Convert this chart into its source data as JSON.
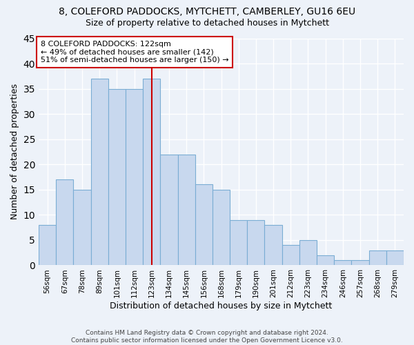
{
  "title": "8, COLEFORD PADDOCKS, MYTCHETT, CAMBERLEY, GU16 6EU",
  "subtitle": "Size of property relative to detached houses in Mytchett",
  "xlabel": "Distribution of detached houses by size in Mytchett",
  "ylabel": "Number of detached properties",
  "categories": [
    "56sqm",
    "67sqm",
    "78sqm",
    "89sqm",
    "101sqm",
    "112sqm",
    "123sqm",
    "134sqm",
    "145sqm",
    "156sqm",
    "168sqm",
    "179sqm",
    "190sqm",
    "201sqm",
    "212sqm",
    "223sqm",
    "234sqm",
    "246sqm",
    "257sqm",
    "268sqm",
    "279sqm"
  ],
  "values": [
    8,
    17,
    15,
    37,
    35,
    35,
    37,
    22,
    22,
    16,
    15,
    9,
    9,
    8,
    4,
    5,
    2,
    1,
    1,
    3,
    3
  ],
  "bar_color": "#c8d8ee",
  "bar_edge_color": "#7aadd4",
  "ylim": [
    0,
    45
  ],
  "yticks": [
    0,
    5,
    10,
    15,
    20,
    25,
    30,
    35,
    40,
    45
  ],
  "annotation_text": "8 COLEFORD PADDOCKS: 122sqm\n← 49% of detached houses are smaller (142)\n51% of semi-detached houses are larger (150) →",
  "annotation_box_color": "#ffffff",
  "annotation_box_edgecolor": "#cc0000",
  "footer_text": "Contains HM Land Registry data © Crown copyright and database right 2024.\nContains public sector information licensed under the Open Government Licence v3.0.",
  "background_color": "#edf2f9",
  "grid_color": "#ffffff",
  "marker_bar_index": 6,
  "marker_color": "#cc0000"
}
